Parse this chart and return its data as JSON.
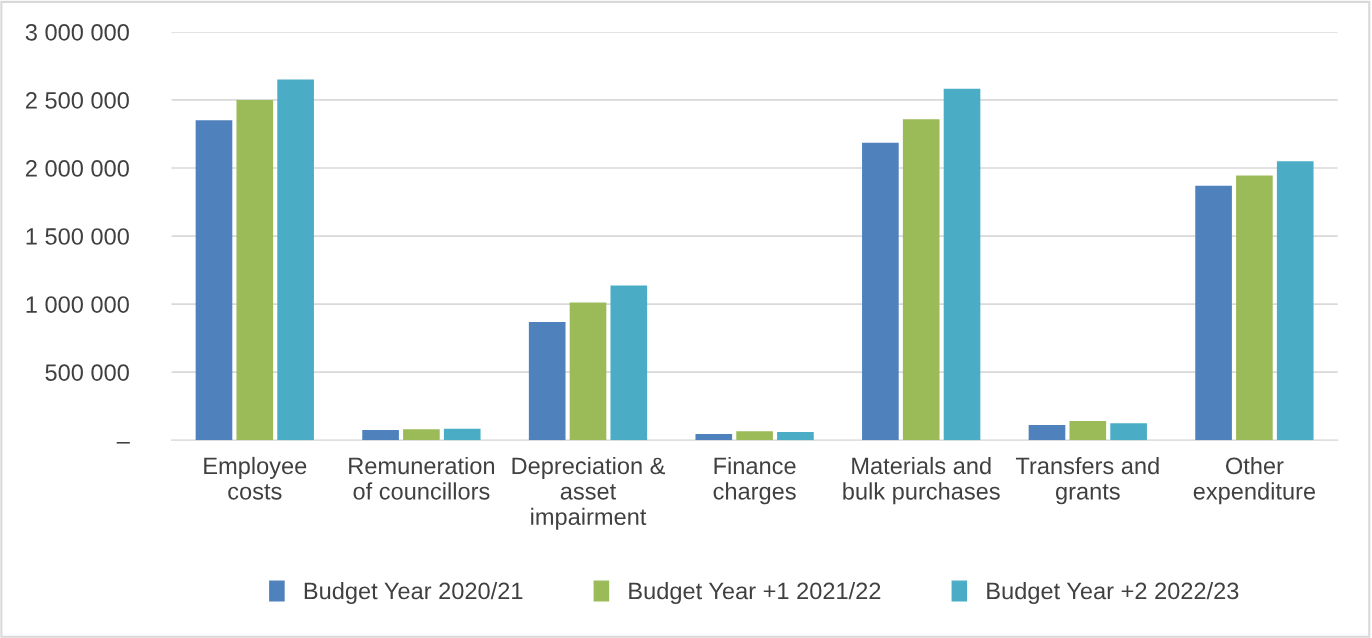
{
  "chart_data": {
    "type": "bar",
    "categories": [
      "Employee\ncosts",
      "Remuneration\nof councillors",
      "Depreciation &\nasset\nimpairment",
      "Finance\ncharges",
      "Materials and\nbulk purchases",
      "Transfers and\ngrants",
      "Other\nexpenditure"
    ],
    "series": [
      {
        "name": "Budget Year 2020/21",
        "color": "#4f81bd",
        "values": [
          2350000,
          75000,
          868000,
          45000,
          2185000,
          112000,
          1870000
        ]
      },
      {
        "name": "Budget Year +1 2021/22",
        "color": "#9bbb59",
        "values": [
          2500000,
          80000,
          1012000,
          65000,
          2358000,
          142000,
          1945000
        ]
      },
      {
        "name": "Budget Year +2 2022/23",
        "color": "#4bacc6",
        "values": [
          2650000,
          85000,
          1136000,
          60000,
          2582000,
          125000,
          2050000
        ]
      }
    ],
    "ylim": [
      0,
      3000000
    ],
    "yticks": [
      {
        "value": 0,
        "label": "–"
      },
      {
        "value": 500000,
        "label": "500 000"
      },
      {
        "value": 1000000,
        "label": "1 000 000"
      },
      {
        "value": 1500000,
        "label": "1 500 000"
      },
      {
        "value": 2000000,
        "label": "2 000 000"
      },
      {
        "value": 2500000,
        "label": "2 500 000"
      },
      {
        "value": 3000000,
        "label": "3 000 000"
      }
    ],
    "grid": "y",
    "legend": "bottom"
  }
}
